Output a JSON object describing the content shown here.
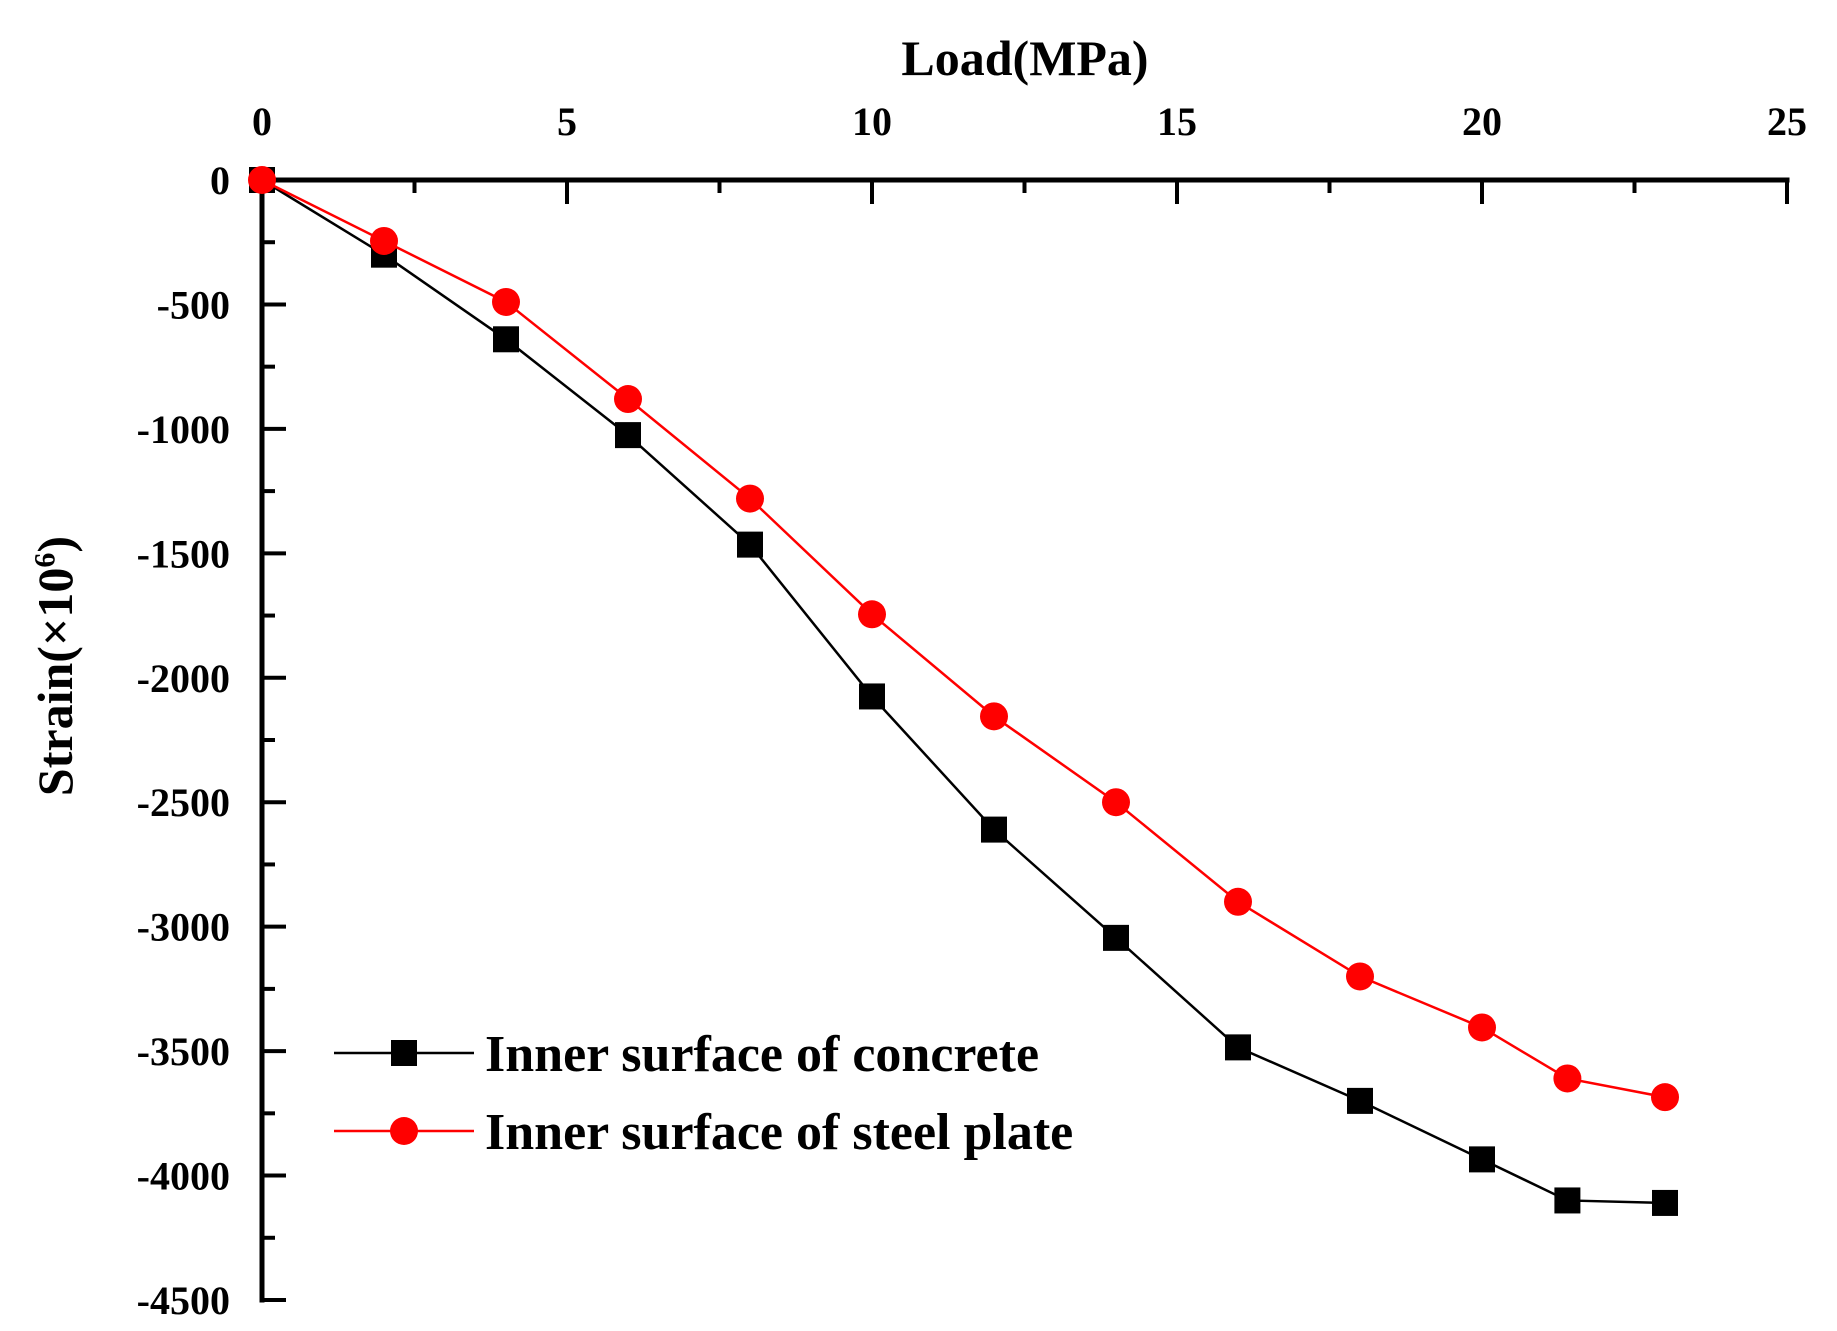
{
  "chart_data": {
    "type": "line",
    "title": "",
    "xlabel": "Load(MPa)",
    "ylabel_main": "Strain(×10",
    "ylabel_sup": "6",
    "ylabel_close": ")",
    "xlim": [
      0,
      25
    ],
    "ylim": [
      -4500,
      0
    ],
    "xticks": [
      0,
      5,
      10,
      15,
      20,
      25
    ],
    "yticks": [
      0,
      -500,
      -1000,
      -1500,
      -2000,
      -2500,
      -3000,
      -3500,
      -4000,
      -4500
    ],
    "xtick_labels": [
      "0",
      "5",
      "10",
      "15",
      "20",
      "25"
    ],
    "ytick_labels": [
      "0",
      "-500",
      "-1000",
      "-1500",
      "-2000",
      "-2500",
      "-3000",
      "-3500",
      "-4000",
      "-4500"
    ],
    "x_axis_position": "top",
    "grid": false,
    "legend_position": "bottom-left",
    "series": [
      {
        "name": "Inner surface of concrete",
        "color": "#000000",
        "marker": "square",
        "x": [
          0,
          2,
          4,
          6,
          8,
          10,
          12,
          14,
          16,
          18,
          20,
          21.4,
          23
        ],
        "y": [
          0,
          -300,
          -640,
          -1025,
          -1465,
          -2075,
          -2610,
          -3045,
          -3485,
          -3700,
          -3935,
          -4100,
          -4110
        ]
      },
      {
        "name": "Inner surface of steel plate",
        "color": "#ff0000",
        "marker": "circle",
        "x": [
          0,
          2,
          4,
          6,
          8,
          10,
          12,
          14,
          16,
          18,
          20,
          21.4,
          23
        ],
        "y": [
          0,
          -245,
          -490,
          -880,
          -1280,
          -1745,
          -2155,
          -2500,
          -2900,
          -3200,
          -3405,
          -3610,
          -3685
        ]
      }
    ]
  }
}
